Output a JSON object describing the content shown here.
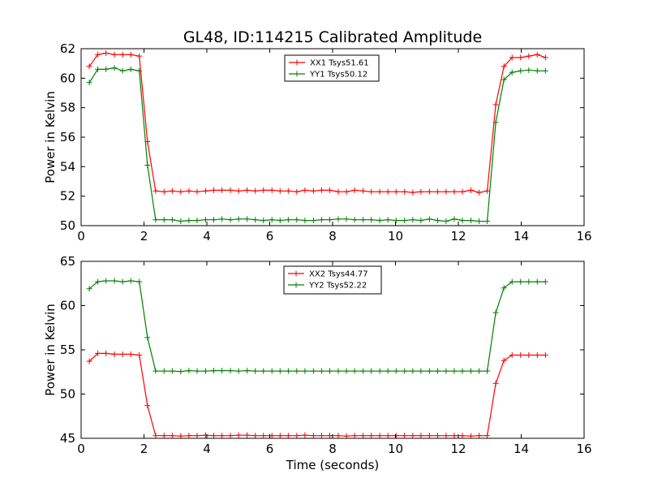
{
  "title": "GL48, ID:114215 Calibrated Amplitude",
  "chart_data": [
    {
      "type": "line",
      "ylabel": "Power in Kelvin",
      "xlabel": "",
      "xlim": [
        0,
        16
      ],
      "ylim": [
        50,
        62
      ],
      "xticks": [
        "0",
        "2",
        "4",
        "6",
        "8",
        "10",
        "12",
        "14",
        "16"
      ],
      "yticks": [
        "50",
        "52",
        "54",
        "56",
        "58",
        "60",
        "62"
      ],
      "grid": false,
      "legend_position": "top-center",
      "x": [
        0.26,
        0.53,
        0.79,
        1.06,
        1.32,
        1.58,
        1.85,
        2.11,
        2.37,
        2.64,
        2.9,
        3.17,
        3.43,
        3.69,
        3.96,
        4.22,
        4.48,
        4.75,
        5.01,
        5.28,
        5.54,
        5.8,
        6.07,
        6.33,
        6.59,
        6.86,
        7.12,
        7.39,
        7.65,
        7.91,
        8.18,
        8.44,
        8.7,
        8.97,
        9.23,
        9.5,
        9.76,
        10.02,
        10.29,
        10.55,
        10.81,
        11.08,
        11.34,
        11.61,
        11.87,
        12.13,
        12.4,
        12.66,
        12.92,
        13.19,
        13.45,
        13.71,
        13.98,
        14.24,
        14.51,
        14.77
      ],
      "series": [
        {
          "name": "XX1 Tsys51.61",
          "color": "#ff0000",
          "values": [
            60.8,
            61.6,
            61.7,
            61.6,
            61.6,
            61.6,
            61.5,
            55.7,
            52.35,
            52.3,
            52.35,
            52.3,
            52.35,
            52.3,
            52.35,
            52.4,
            52.4,
            52.4,
            52.35,
            52.4,
            52.35,
            52.4,
            52.4,
            52.35,
            52.35,
            52.3,
            52.4,
            52.35,
            52.4,
            52.4,
            52.3,
            52.3,
            52.4,
            52.35,
            52.3,
            52.3,
            52.3,
            52.3,
            52.3,
            52.25,
            52.3,
            52.3,
            52.3,
            52.3,
            52.3,
            52.3,
            52.4,
            52.25,
            52.35,
            58.2,
            60.8,
            61.4,
            61.4,
            61.5,
            61.6,
            61.4
          ]
        },
        {
          "name": "YY1 Tsys50.12",
          "color": "#008000",
          "values": [
            59.7,
            60.6,
            60.6,
            60.7,
            60.5,
            60.6,
            60.5,
            54.1,
            50.4,
            50.4,
            50.4,
            50.3,
            50.35,
            50.35,
            50.4,
            50.4,
            50.45,
            50.4,
            50.45,
            50.45,
            50.4,
            50.35,
            50.4,
            50.35,
            50.4,
            50.4,
            50.35,
            50.35,
            50.4,
            50.4,
            50.45,
            50.45,
            50.4,
            50.4,
            50.4,
            50.35,
            50.4,
            50.35,
            50.35,
            50.4,
            50.35,
            50.45,
            50.35,
            50.3,
            50.45,
            50.35,
            50.35,
            50.3,
            50.3,
            57.0,
            59.9,
            60.4,
            60.5,
            60.55,
            60.5,
            60.5
          ]
        }
      ]
    },
    {
      "type": "line",
      "ylabel": "Power in Kelvin",
      "xlabel": "Time (seconds)",
      "xlim": [
        0,
        16
      ],
      "ylim": [
        45,
        65
      ],
      "xticks": [
        "0",
        "2",
        "4",
        "6",
        "8",
        "10",
        "12",
        "14",
        "16"
      ],
      "yticks": [
        "45",
        "50",
        "55",
        "60",
        "65"
      ],
      "grid": false,
      "legend_position": "top-center",
      "x": [
        0.26,
        0.53,
        0.79,
        1.06,
        1.32,
        1.58,
        1.85,
        2.11,
        2.37,
        2.64,
        2.9,
        3.17,
        3.43,
        3.69,
        3.96,
        4.22,
        4.48,
        4.75,
        5.01,
        5.28,
        5.54,
        5.8,
        6.07,
        6.33,
        6.59,
        6.86,
        7.12,
        7.39,
        7.65,
        7.91,
        8.18,
        8.44,
        8.7,
        8.97,
        9.23,
        9.5,
        9.76,
        10.02,
        10.29,
        10.55,
        10.81,
        11.08,
        11.34,
        11.61,
        11.87,
        12.13,
        12.4,
        12.66,
        12.92,
        13.19,
        13.45,
        13.71,
        13.98,
        14.24,
        14.51,
        14.77
      ],
      "series": [
        {
          "name": "XX2 Tsys44.77",
          "color": "#ff0000",
          "values": [
            53.7,
            54.6,
            54.6,
            54.5,
            54.5,
            54.5,
            54.4,
            48.7,
            45.3,
            45.3,
            45.3,
            45.25,
            45.3,
            45.3,
            45.35,
            45.3,
            45.3,
            45.3,
            45.35,
            45.35,
            45.3,
            45.3,
            45.3,
            45.3,
            45.3,
            45.3,
            45.35,
            45.3,
            45.3,
            45.3,
            45.3,
            45.25,
            45.3,
            45.3,
            45.3,
            45.3,
            45.3,
            45.3,
            45.3,
            45.3,
            45.3,
            45.3,
            45.3,
            45.3,
            45.3,
            45.3,
            45.25,
            45.3,
            45.3,
            51.2,
            53.8,
            54.4,
            54.4,
            54.4,
            54.4,
            54.4
          ]
        },
        {
          "name": "YY2 Tsys52.22",
          "color": "#008000",
          "values": [
            61.9,
            62.7,
            62.8,
            62.8,
            62.7,
            62.8,
            62.7,
            56.4,
            52.6,
            52.6,
            52.6,
            52.55,
            52.65,
            52.6,
            52.6,
            52.65,
            52.65,
            52.65,
            52.6,
            52.65,
            52.6,
            52.6,
            52.6,
            52.6,
            52.6,
            52.6,
            52.6,
            52.6,
            52.6,
            52.6,
            52.6,
            52.6,
            52.6,
            52.6,
            52.6,
            52.6,
            52.6,
            52.6,
            52.6,
            52.6,
            52.6,
            52.6,
            52.6,
            52.6,
            52.6,
            52.6,
            52.6,
            52.6,
            52.6,
            59.2,
            62.0,
            62.7,
            62.7,
            62.7,
            62.7,
            62.7
          ]
        }
      ]
    }
  ]
}
